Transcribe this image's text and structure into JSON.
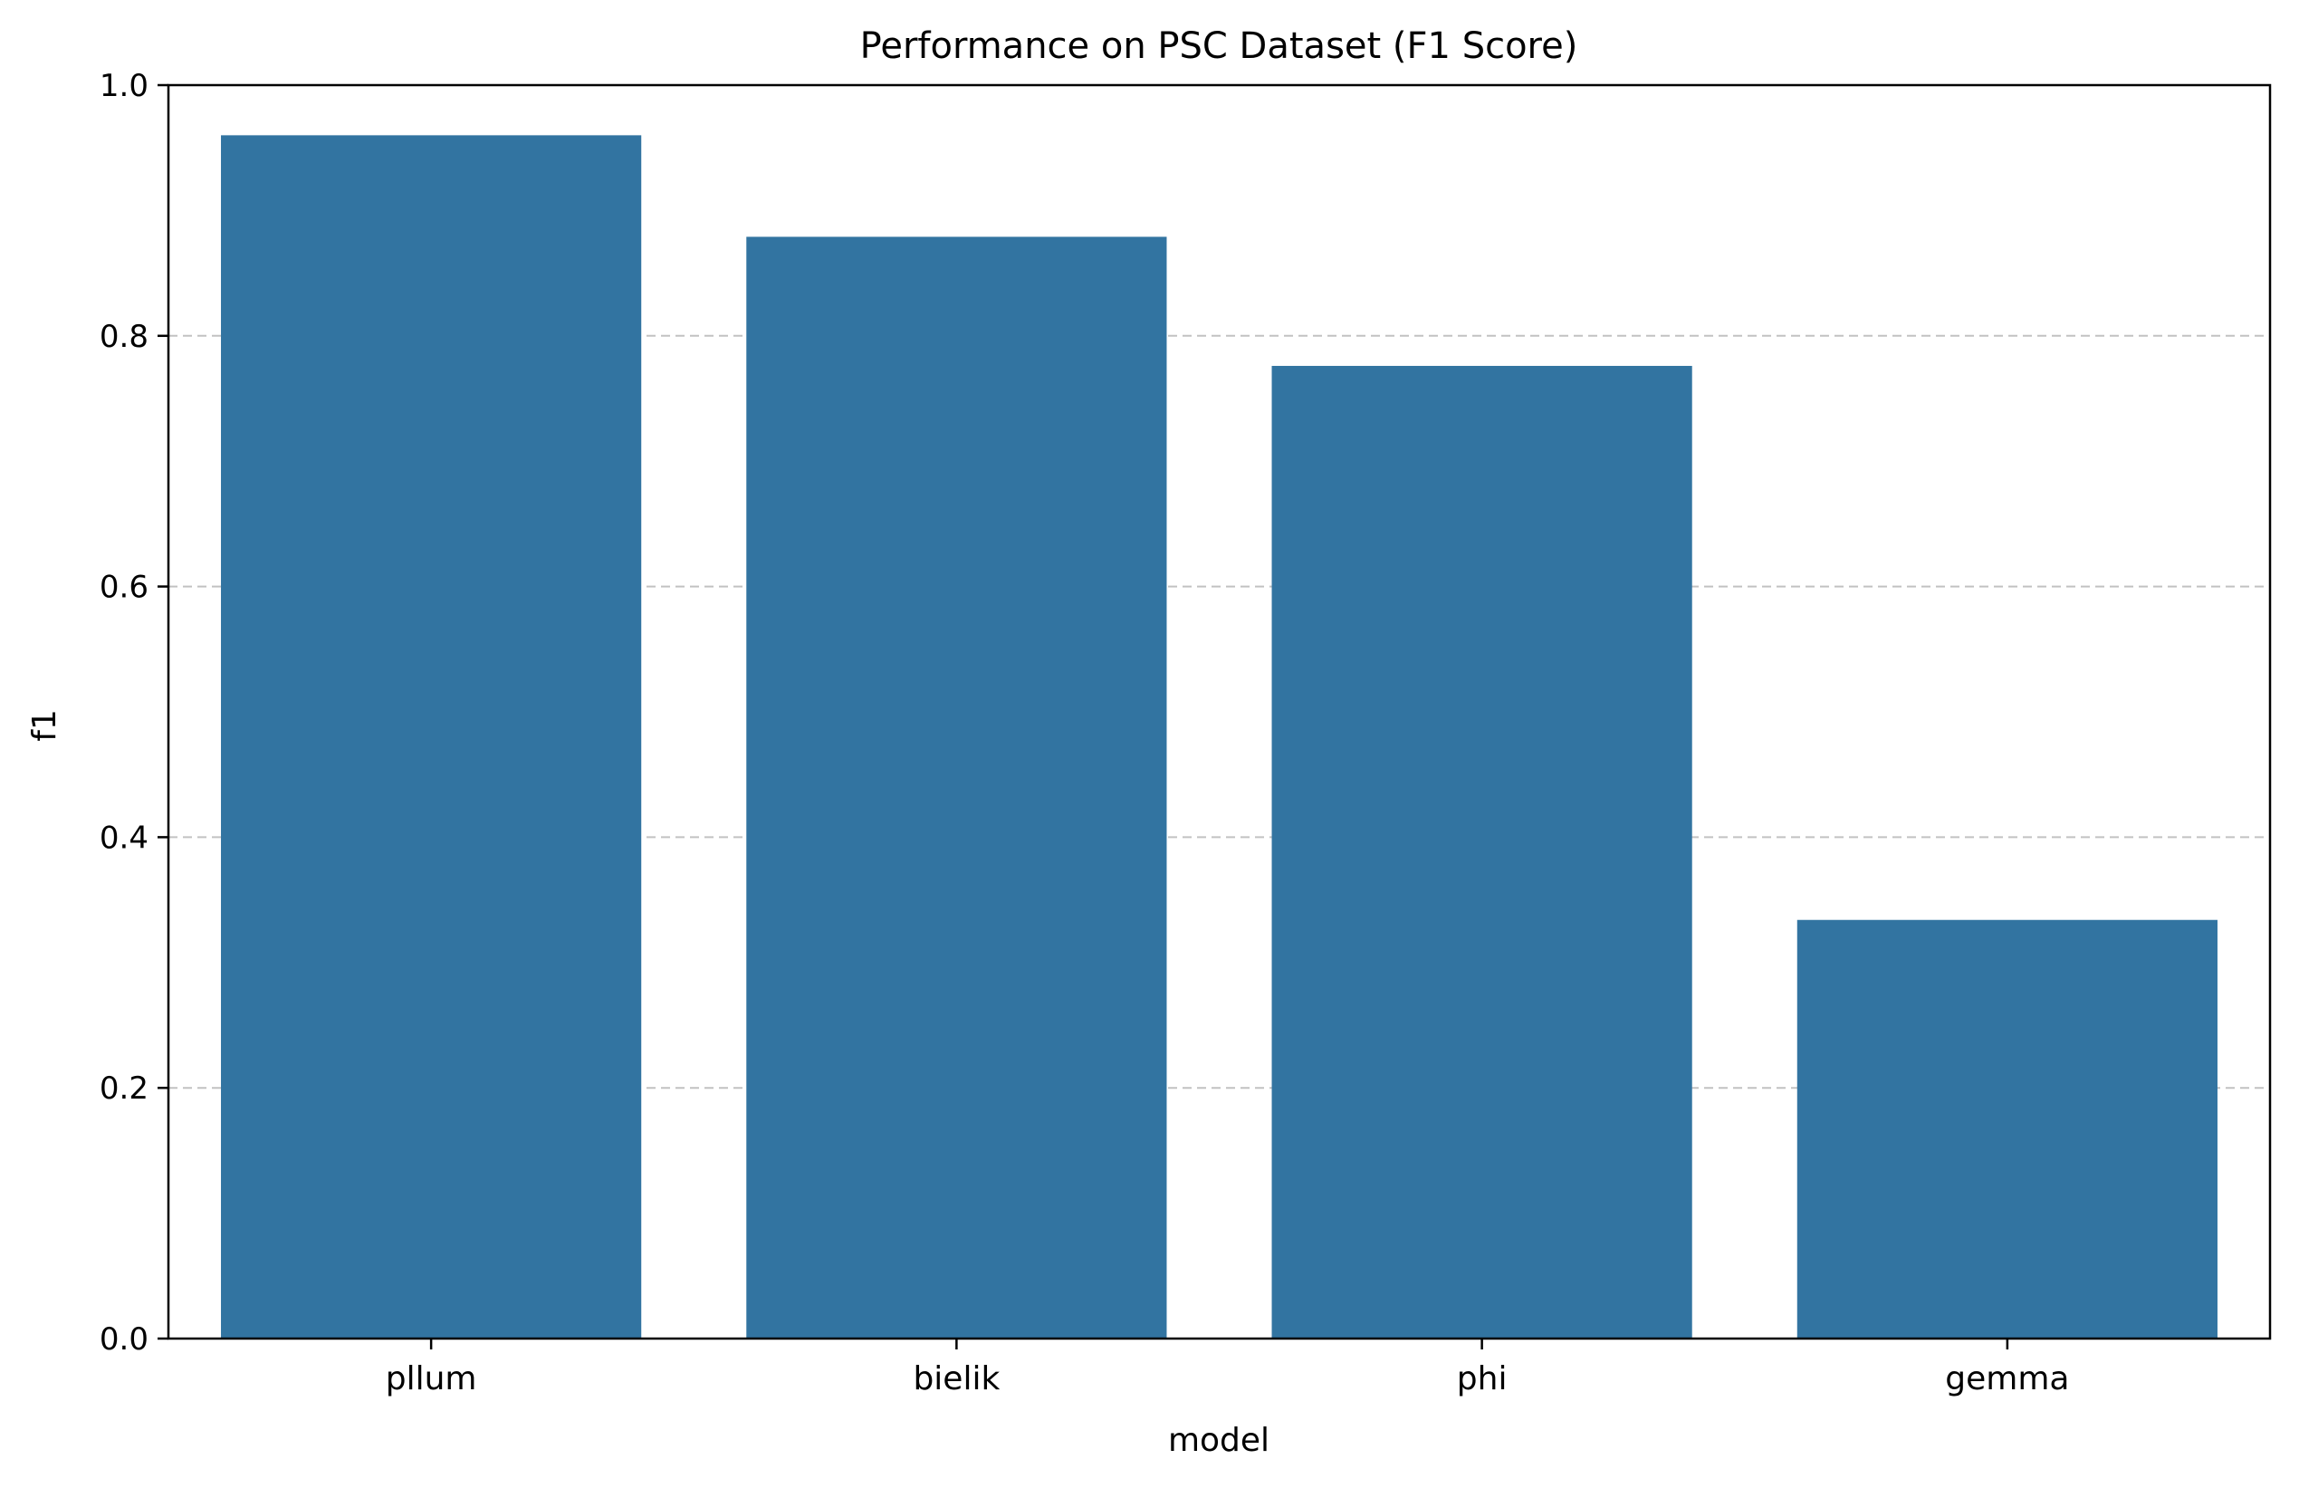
{
  "chart_data": {
    "type": "bar",
    "title": "Performance on PSC Dataset (F1 Score)",
    "xlabel": "model",
    "ylabel": "f1",
    "categories": [
      "pllum",
      "bielik",
      "phi",
      "gemma"
    ],
    "values": [
      0.96,
      0.879,
      0.776,
      0.334
    ],
    "ylim": [
      0.0,
      1.0
    ],
    "yticks": [
      "0.0",
      "0.2",
      "0.4",
      "0.6",
      "0.8",
      "1.0"
    ],
    "grid": "y dashed",
    "legend": "none",
    "bar_color": "#3274a1",
    "grid_color": "#c2c2c2"
  }
}
